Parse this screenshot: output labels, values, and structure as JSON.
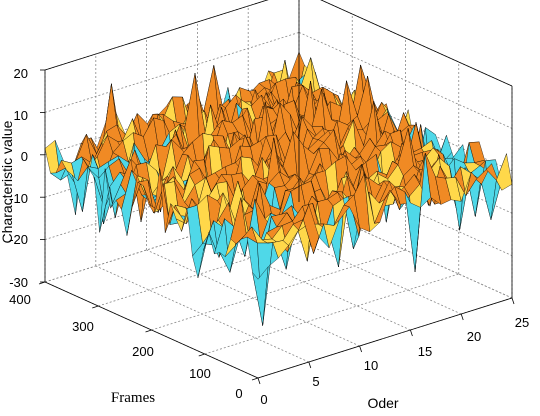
{
  "chart_data": {
    "type": "surface",
    "title": "",
    "xlabel": "Oder",
    "ylabel": "Frames",
    "zlabel": "Characteristic value",
    "xlim": [
      0,
      25
    ],
    "ylim": [
      0,
      400
    ],
    "zlim": [
      -30,
      20
    ],
    "x_ticks": [
      "0",
      "5",
      "10",
      "15",
      "20",
      "25"
    ],
    "y_ticks": [
      "0",
      "100",
      "200",
      "300",
      "400"
    ],
    "z_ticks": [
      "20",
      "10",
      "0",
      "-10",
      "-20",
      "-30"
    ],
    "grid": true,
    "colors": {
      "high": "#f08a24",
      "mid": "#ffd84a",
      "low": "#4fd8e8",
      "edge": "#000000"
    },
    "value_range_observed": [
      -28,
      15
    ]
  }
}
